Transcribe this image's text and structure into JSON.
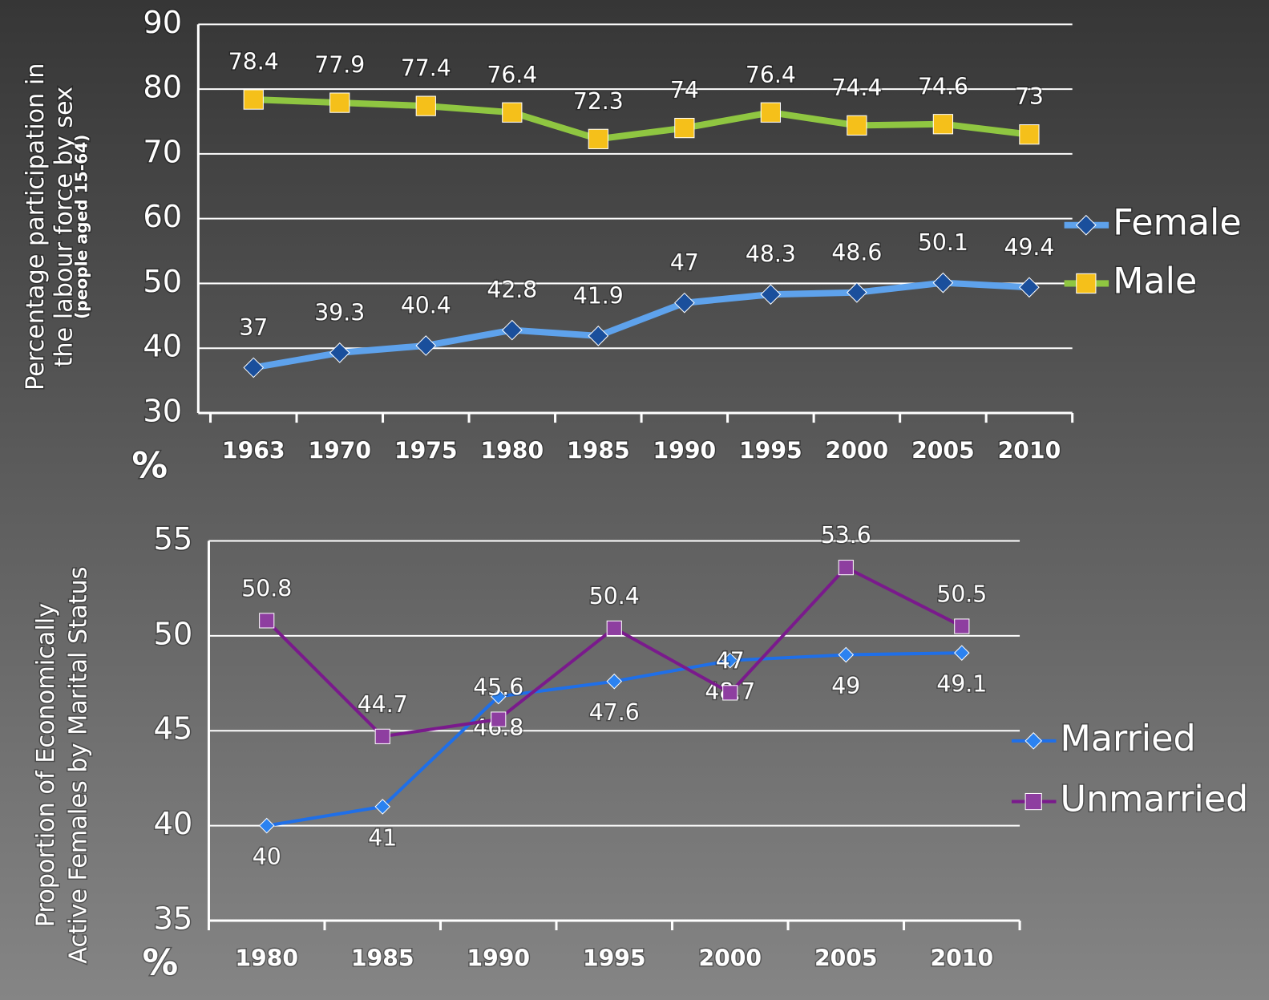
{
  "chart_data": [
    {
      "type": "line",
      "ylabel": [
        "Percentage participation in",
        "the labour force by sex"
      ],
      "ylabel_note": "(people aged 15-64)",
      "unit_label": "%",
      "categories": [
        "1963",
        "1970",
        "1975",
        "1980",
        "1985",
        "1990",
        "1995",
        "2000",
        "2005",
        "2010"
      ],
      "series": [
        {
          "name": "Female",
          "color": "#5ea2ec",
          "marker_color": "#1a4f9c",
          "marker": "diamond",
          "values": [
            37,
            39.3,
            40.4,
            42.8,
            41.9,
            47,
            48.3,
            48.6,
            50.1,
            49.4
          ]
        },
        {
          "name": "Male",
          "color": "#8fc641",
          "marker_color": "#f5c01a",
          "marker": "square",
          "values": [
            78.4,
            77.9,
            77.4,
            76.4,
            72.3,
            74,
            76.4,
            74.4,
            74.6,
            73
          ]
        }
      ],
      "ylim": [
        30,
        90
      ],
      "yticks": [
        30,
        40,
        50,
        60,
        70,
        80,
        90
      ],
      "grid": true,
      "legend": "right"
    },
    {
      "type": "line",
      "ylabel": [
        "Proportion of Economically",
        "Active Females by Marital Status"
      ],
      "unit_label": "%",
      "categories": [
        "1980",
        "1985",
        "1990",
        "1995",
        "2000",
        "2005",
        "2010"
      ],
      "series": [
        {
          "name": "Married",
          "color": "#1f6fe8",
          "marker_color": "#2b82f0",
          "marker": "diamond",
          "values": [
            40,
            41,
            46.8,
            47.6,
            48.7,
            49,
            49.1
          ]
        },
        {
          "name": "Unmarried",
          "color": "#7a1a8c",
          "marker_color": "#8e3ea0",
          "marker": "square",
          "values": [
            50.8,
            44.7,
            45.6,
            50.4,
            47,
            53.6,
            50.5
          ]
        }
      ],
      "ylim": [
        35,
        55
      ],
      "yticks": [
        35,
        40,
        45,
        50,
        55
      ],
      "grid": true,
      "legend": "right"
    }
  ]
}
